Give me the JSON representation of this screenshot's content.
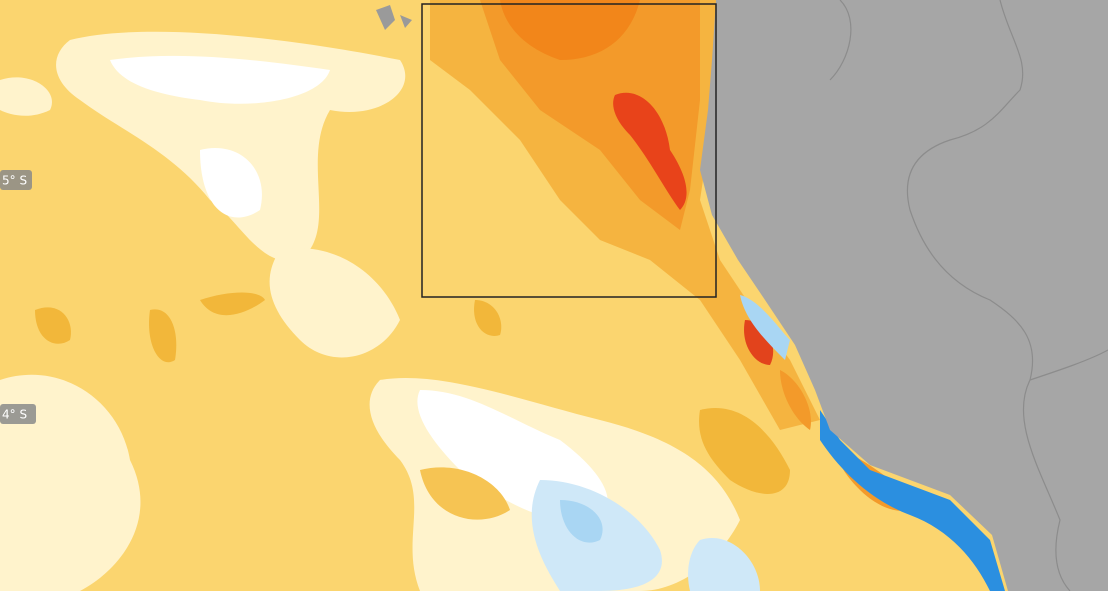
{
  "latitude_labels": [
    "5° S",
    "4° S"
  ]
}
